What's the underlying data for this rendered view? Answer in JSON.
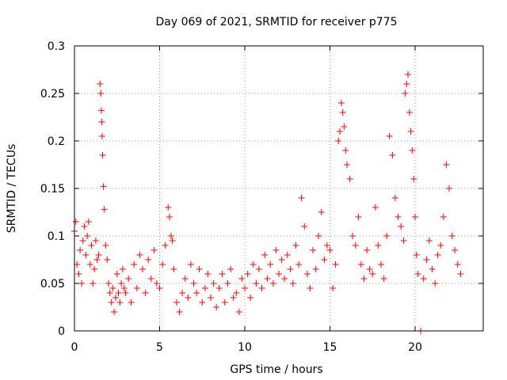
{
  "chart_data": {
    "type": "scatter",
    "title": "Day 069 of 2021, SRMTID for receiver p775",
    "xlabel": "GPS time / hours",
    "ylabel": "SRMTID / TECUs",
    "xlim": [
      0,
      24
    ],
    "ylim": [
      0,
      0.3
    ],
    "xticks": [
      0,
      5,
      10,
      15,
      20
    ],
    "xtick_labels": [
      "0",
      "5",
      "10",
      "15",
      "20"
    ],
    "yticks": [
      0,
      0.05,
      0.1,
      0.15,
      0.2,
      0.25,
      0.3
    ],
    "ytick_labels": [
      "0",
      "0.05",
      "0.1",
      "0.15",
      "0.2",
      "0.25",
      "0.3"
    ],
    "grid": true,
    "marker": "+",
    "series": [
      {
        "name": "SRMTID",
        "color": "#ff0000",
        "x": [
          0.0,
          0.08,
          0.15,
          0.25,
          0.33,
          0.42,
          0.5,
          0.58,
          0.67,
          0.75,
          0.83,
          0.92,
          1.0,
          1.08,
          1.17,
          1.25,
          1.33,
          1.42,
          1.5,
          1.55,
          1.58,
          1.6,
          1.62,
          1.65,
          1.7,
          1.75,
          1.83,
          1.92,
          2.0,
          2.08,
          2.17,
          2.25,
          2.33,
          2.42,
          2.5,
          2.58,
          2.67,
          2.75,
          2.83,
          2.92,
          3.0,
          3.17,
          3.33,
          3.5,
          3.67,
          3.83,
          4.0,
          4.17,
          4.33,
          4.5,
          4.67,
          4.83,
          5.0,
          5.17,
          5.33,
          5.5,
          5.58,
          5.67,
          5.75,
          5.83,
          6.0,
          6.17,
          6.33,
          6.5,
          6.67,
          6.83,
          7.0,
          7.17,
          7.33,
          7.5,
          7.67,
          7.83,
          8.0,
          8.17,
          8.33,
          8.5,
          8.67,
          8.83,
          9.0,
          9.17,
          9.33,
          9.5,
          9.67,
          9.83,
          10.0,
          10.17,
          10.33,
          10.5,
          10.67,
          10.83,
          11.0,
          11.17,
          11.33,
          11.5,
          11.67,
          11.83,
          12.0,
          12.17,
          12.33,
          12.5,
          12.67,
          12.83,
          13.0,
          13.17,
          13.33,
          13.5,
          13.67,
          13.83,
          14.0,
          14.17,
          14.33,
          14.5,
          14.67,
          14.83,
          15.0,
          15.17,
          15.33,
          15.5,
          15.58,
          15.67,
          15.75,
          15.83,
          15.92,
          16.0,
          16.17,
          16.33,
          16.5,
          16.67,
          16.83,
          17.0,
          17.17,
          17.33,
          17.5,
          17.67,
          17.83,
          18.0,
          18.17,
          18.33,
          18.5,
          18.67,
          18.83,
          19.0,
          19.17,
          19.33,
          19.42,
          19.5,
          19.58,
          19.67,
          19.75,
          19.83,
          19.92,
          20.0,
          20.08,
          20.17,
          20.33,
          20.5,
          20.67,
          20.83,
          21.0,
          21.17,
          21.33,
          21.5,
          21.67,
          21.83,
          22.0,
          22.17,
          22.33,
          22.5,
          22.67
        ],
        "y": [
          0.105,
          0.115,
          0.07,
          0.06,
          0.085,
          0.05,
          0.095,
          0.11,
          0.08,
          0.1,
          0.115,
          0.07,
          0.09,
          0.05,
          0.065,
          0.095,
          0.075,
          0.08,
          0.26,
          0.25,
          0.232,
          0.22,
          0.205,
          0.185,
          0.152,
          0.128,
          0.09,
          0.075,
          0.05,
          0.04,
          0.03,
          0.045,
          0.02,
          0.035,
          0.06,
          0.04,
          0.03,
          0.05,
          0.065,
          0.045,
          0.04,
          0.055,
          0.03,
          0.07,
          0.045,
          0.08,
          0.065,
          0.04,
          0.075,
          0.055,
          0.085,
          0.05,
          0.045,
          0.07,
          0.09,
          0.13,
          0.12,
          0.1,
          0.095,
          0.065,
          0.03,
          0.02,
          0.04,
          0.055,
          0.035,
          0.07,
          0.05,
          0.04,
          0.065,
          0.03,
          0.045,
          0.06,
          0.035,
          0.05,
          0.025,
          0.045,
          0.06,
          0.03,
          0.05,
          0.065,
          0.035,
          0.04,
          0.02,
          0.055,
          0.045,
          0.06,
          0.035,
          0.07,
          0.05,
          0.065,
          0.045,
          0.08,
          0.055,
          0.07,
          0.05,
          0.085,
          0.06,
          0.075,
          0.055,
          0.08,
          0.065,
          0.05,
          0.09,
          0.07,
          0.14,
          0.11,
          0.06,
          0.045,
          0.085,
          0.065,
          0.1,
          0.125,
          0.075,
          0.09,
          0.085,
          0.045,
          0.07,
          0.2,
          0.21,
          0.24,
          0.23,
          0.215,
          0.19,
          0.175,
          0.16,
          0.1,
          0.09,
          0.12,
          0.07,
          0.055,
          0.085,
          0.065,
          0.06,
          0.13,
          0.09,
          0.07,
          0.055,
          0.1,
          0.205,
          0.185,
          0.14,
          0.12,
          0.11,
          0.095,
          0.25,
          0.26,
          0.27,
          0.23,
          0.21,
          0.19,
          0.16,
          0.12,
          0.08,
          0.06,
          0.0,
          0.055,
          0.075,
          0.095,
          0.065,
          0.05,
          0.08,
          0.09,
          0.12,
          0.175,
          0.15,
          0.1,
          0.085,
          0.07,
          0.06
        ]
      }
    ]
  }
}
